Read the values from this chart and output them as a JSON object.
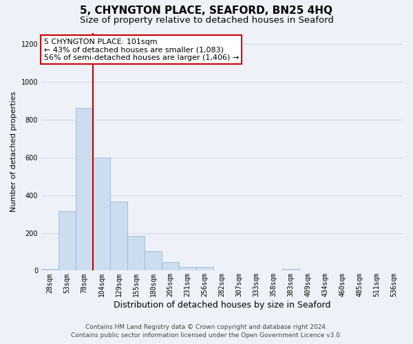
{
  "title": "5, CHYNGTON PLACE, SEAFORD, BN25 4HQ",
  "subtitle": "Size of property relative to detached houses in Seaford",
  "xlabel": "Distribution of detached houses by size in Seaford",
  "ylabel": "Number of detached properties",
  "bar_labels": [
    "28sqm",
    "53sqm",
    "78sqm",
    "104sqm",
    "129sqm",
    "155sqm",
    "180sqm",
    "205sqm",
    "231sqm",
    "256sqm",
    "282sqm",
    "307sqm",
    "333sqm",
    "358sqm",
    "383sqm",
    "409sqm",
    "434sqm",
    "460sqm",
    "485sqm",
    "511sqm",
    "536sqm"
  ],
  "bar_values": [
    10,
    315,
    860,
    600,
    365,
    185,
    105,
    45,
    20,
    18,
    0,
    0,
    0,
    0,
    8,
    0,
    0,
    0,
    0,
    0,
    0
  ],
  "bar_color": "#ccddf0",
  "bar_edge_color": "#9ab8d8",
  "vline_x": 2.5,
  "vline_color": "#bb0000",
  "annotation_line1": "5 CHYNGTON PLACE: 101sqm",
  "annotation_line2": "← 43% of detached houses are smaller (1,083)",
  "annotation_line3": "56% of semi-detached houses are larger (1,406) →",
  "annotation_box_color": "#ffffff",
  "annotation_box_edge": "#cc0000",
  "ylim": [
    0,
    1260
  ],
  "yticks": [
    0,
    200,
    400,
    600,
    800,
    1000,
    1200
  ],
  "footer1": "Contains HM Land Registry data © Crown copyright and database right 2024.",
  "footer2": "Contains public sector information licensed under the Open Government Licence v3.0.",
  "bg_color": "#eef2f8",
  "plot_bg_color": "#eef2f8",
  "grid_color": "#d0dae8",
  "title_fontsize": 11,
  "subtitle_fontsize": 9.5,
  "xlabel_fontsize": 9,
  "ylabel_fontsize": 8,
  "tick_fontsize": 7,
  "annot_fontsize": 8,
  "footer_fontsize": 6.5
}
